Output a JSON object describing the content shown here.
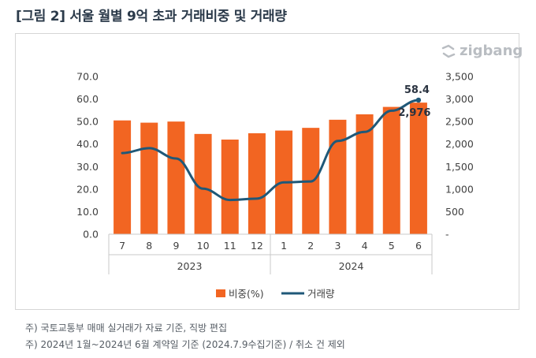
{
  "header": {
    "title": "[그림 2] 서울 월별 9억 초과 거래비중 및 거래량"
  },
  "brand": {
    "logo_text": "zigbang"
  },
  "notes": [
    "주) 국토교통부 매매 실거래가 자료 기준, 직방 편집",
    "주) 2024년 1월~2024년 6월 계약일 기준 (2024.7.9수집기준) / 취소 건 제외"
  ],
  "colors": {
    "bar": "#f26522",
    "line": "#1f5878",
    "axis": "#c8c8c8"
  },
  "chart_data": {
    "type": "bar+line",
    "title": "서울 월별 9억 초과 거래비중 및 거래량",
    "categories": [
      "7",
      "8",
      "9",
      "10",
      "11",
      "12",
      "1",
      "2",
      "3",
      "4",
      "5",
      "6"
    ],
    "groups": [
      {
        "label": "2023",
        "start": 0,
        "end": 5
      },
      {
        "label": "2024",
        "start": 6,
        "end": 11
      }
    ],
    "series": [
      {
        "name": "비중(%)",
        "type": "bar",
        "axis": "left",
        "values": [
          50.5,
          49.5,
          50.0,
          44.5,
          42.0,
          44.8,
          46.0,
          47.2,
          50.8,
          53.2,
          56.5,
          58.4
        ]
      },
      {
        "name": "거래량",
        "type": "line",
        "axis": "right",
        "values": [
          1800,
          1910,
          1680,
          1010,
          760,
          790,
          1150,
          1170,
          2070,
          2270,
          2740,
          2976
        ]
      }
    ],
    "left_axis": {
      "min": 0,
      "max": 70,
      "step": 10,
      "tick_labels": [
        "0.0",
        "10.0",
        "20.0",
        "30.0",
        "40.0",
        "50.0",
        "60.0",
        "70.0"
      ]
    },
    "right_axis": {
      "min": 0,
      "max": 3500,
      "step": 500,
      "tick_labels": [
        "-",
        "500",
        "1,000",
        "1,500",
        "2,000",
        "2,500",
        "3,000",
        "3,500"
      ]
    },
    "annotations": [
      {
        "series": 0,
        "index": 11,
        "text": "58.4"
      },
      {
        "series": 1,
        "index": 11,
        "text": "2,976"
      }
    ],
    "legend": {
      "position": "bottom",
      "entries": [
        "비중(%)",
        "거래량"
      ]
    },
    "grid": false
  }
}
